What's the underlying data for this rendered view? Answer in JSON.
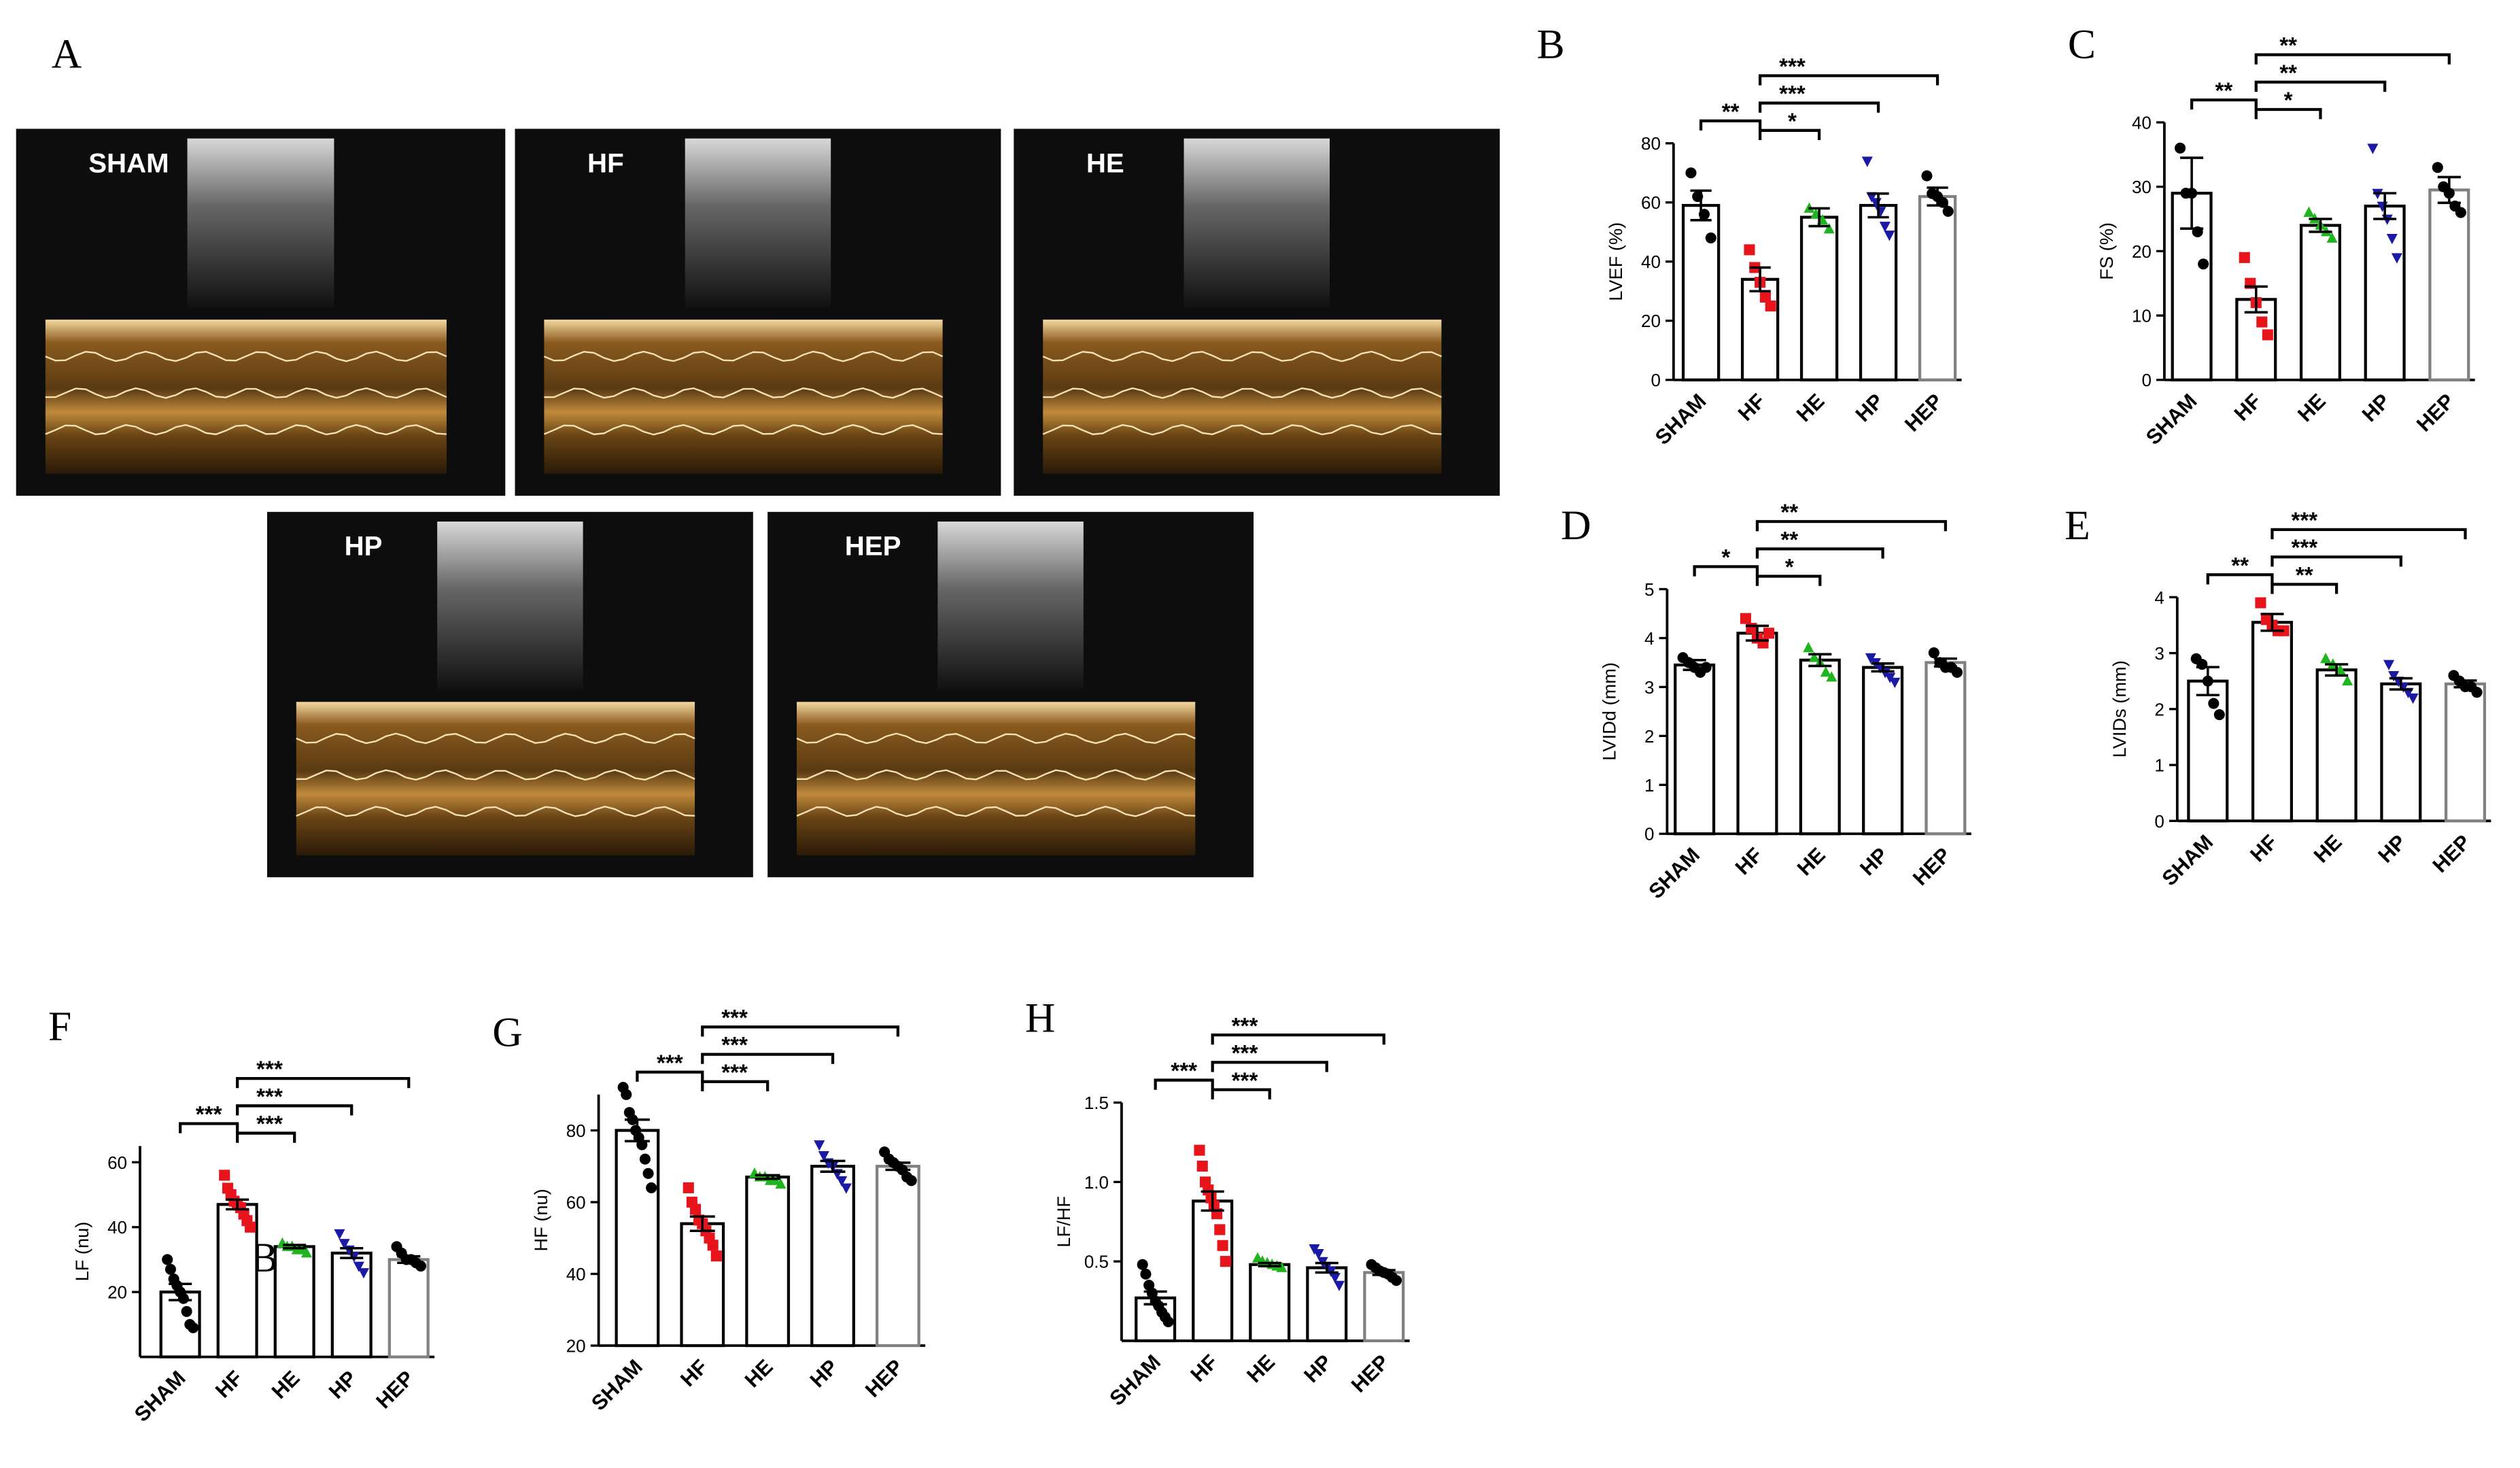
{
  "panel_a": {
    "label": "A",
    "images": [
      "SHAM",
      "HF",
      "HE",
      "HP",
      "HEP"
    ]
  },
  "chart_data": [
    {
      "type": "bar",
      "panel": "B",
      "ylabel": "LVEF (%)",
      "categories": [
        "SHAM",
        "HF",
        "HE",
        "HP",
        "HEP"
      ],
      "values": [
        59,
        34,
        55,
        59,
        62
      ],
      "errors": [
        5,
        4,
        3,
        4,
        3
      ],
      "points": [
        [
          70,
          62,
          56,
          48
        ],
        [
          44,
          38,
          33,
          28,
          25
        ],
        [
          58,
          56,
          54,
          51
        ],
        [
          74,
          62,
          60,
          57,
          52,
          49
        ],
        [
          69,
          63,
          62,
          60,
          57
        ]
      ],
      "colors": [
        "#000000",
        "#e8141c",
        "#1fb51f",
        "#1a1aa6",
        "#000000"
      ],
      "markers": [
        "circle",
        "square",
        "triangle",
        "triangle-down",
        "circle"
      ],
      "edge_colors": [
        "#000000",
        "#000000",
        "#000000",
        "#000000",
        "#808080"
      ],
      "ylim": [
        0,
        80
      ],
      "yticks": [
        0,
        20,
        40,
        60,
        80
      ],
      "brackets": [
        {
          "from": 0,
          "to": 1,
          "label": "**"
        },
        {
          "from": 1,
          "to": 2,
          "label": "*"
        },
        {
          "from": 1,
          "to": 3,
          "label": "***"
        },
        {
          "from": 1,
          "to": 4,
          "label": "***"
        }
      ]
    },
    {
      "type": "bar",
      "panel": "C",
      "ylabel": "FS (%)",
      "categories": [
        "SHAM",
        "HF",
        "HE",
        "HP",
        "HEP"
      ],
      "values": [
        29,
        12.5,
        24,
        27,
        29.5
      ],
      "errors": [
        5.5,
        2,
        1,
        2,
        2
      ],
      "points": [
        [
          36,
          29,
          29,
          23,
          18
        ],
        [
          19,
          15,
          12,
          9,
          7
        ],
        [
          26,
          25,
          24,
          23,
          22
        ],
        [
          36,
          29,
          27,
          25,
          22,
          19
        ],
        [
          33,
          30,
          29,
          27,
          26
        ]
      ],
      "colors": [
        "#000000",
        "#e8141c",
        "#1fb51f",
        "#1a1aa6",
        "#000000"
      ],
      "markers": [
        "circle",
        "square",
        "triangle",
        "triangle-down",
        "circle"
      ],
      "edge_colors": [
        "#000000",
        "#000000",
        "#000000",
        "#000000",
        "#808080"
      ],
      "ylim": [
        0,
        40
      ],
      "yticks": [
        0,
        10,
        20,
        30,
        40
      ],
      "brackets": [
        {
          "from": 0,
          "to": 1,
          "label": "**"
        },
        {
          "from": 1,
          "to": 2,
          "label": "*"
        },
        {
          "from": 1,
          "to": 3,
          "label": "**"
        },
        {
          "from": 1,
          "to": 4,
          "label": "**"
        }
      ]
    },
    {
      "type": "bar",
      "panel": "D",
      "ylabel": "LVIDd (mm)",
      "categories": [
        "SHAM",
        "HF",
        "HE",
        "HP",
        "HEP"
      ],
      "values": [
        3.45,
        4.1,
        3.55,
        3.4,
        3.5
      ],
      "errors": [
        0.1,
        0.15,
        0.12,
        0.08,
        0.08
      ],
      "points": [
        [
          3.6,
          3.5,
          3.4,
          3.3,
          3.4
        ],
        [
          4.4,
          4.2,
          4.0,
          3.9,
          4.1
        ],
        [
          3.8,
          3.6,
          3.5,
          3.3,
          3.2
        ],
        [
          3.6,
          3.5,
          3.4,
          3.3,
          3.2,
          3.1
        ],
        [
          3.7,
          3.5,
          3.4,
          3.4,
          3.3
        ]
      ],
      "colors": [
        "#000000",
        "#e8141c",
        "#1fb51f",
        "#1a1aa6",
        "#000000"
      ],
      "markers": [
        "circle",
        "square",
        "triangle",
        "triangle-down",
        "circle"
      ],
      "edge_colors": [
        "#000000",
        "#000000",
        "#000000",
        "#000000",
        "#808080"
      ],
      "ylim": [
        0,
        5
      ],
      "yticks": [
        0,
        1,
        2,
        3,
        4,
        5
      ],
      "brackets": [
        {
          "from": 0,
          "to": 1,
          "label": "*"
        },
        {
          "from": 1,
          "to": 2,
          "label": "*"
        },
        {
          "from": 1,
          "to": 3,
          "label": "**"
        },
        {
          "from": 1,
          "to": 4,
          "label": "**"
        }
      ]
    },
    {
      "type": "bar",
      "panel": "E",
      "ylabel": "LVIDs (mm)",
      "categories": [
        "SHAM",
        "HF",
        "HE",
        "HP",
        "HEP"
      ],
      "values": [
        2.5,
        3.55,
        2.7,
        2.45,
        2.45
      ],
      "errors": [
        0.25,
        0.15,
        0.1,
        0.1,
        0.06
      ],
      "points": [
        [
          2.9,
          2.8,
          2.5,
          2.1,
          1.9
        ],
        [
          3.9,
          3.6,
          3.5,
          3.4,
          3.4
        ],
        [
          2.9,
          2.8,
          2.7,
          2.5
        ],
        [
          2.8,
          2.6,
          2.5,
          2.4,
          2.3,
          2.2
        ],
        [
          2.6,
          2.5,
          2.4,
          2.4,
          2.3
        ]
      ],
      "colors": [
        "#000000",
        "#e8141c",
        "#1fb51f",
        "#1a1aa6",
        "#000000"
      ],
      "markers": [
        "circle",
        "square",
        "triangle",
        "triangle-down",
        "circle"
      ],
      "edge_colors": [
        "#000000",
        "#000000",
        "#000000",
        "#000000",
        "#808080"
      ],
      "ylim": [
        0,
        4
      ],
      "yticks": [
        0,
        1,
        2,
        3,
        4
      ],
      "brackets": [
        {
          "from": 0,
          "to": 1,
          "label": "**"
        },
        {
          "from": 1,
          "to": 2,
          "label": "**"
        },
        {
          "from": 1,
          "to": 3,
          "label": "***"
        },
        {
          "from": 1,
          "to": 4,
          "label": "***"
        }
      ]
    },
    {
      "type": "bar",
      "panel": "F",
      "ylabel": "LF (nu)",
      "annotation": "B",
      "categories": [
        "SHAM",
        "HF",
        "HE",
        "HP",
        "HEP"
      ],
      "values": [
        20,
        47,
        34,
        32,
        30
      ],
      "errors": [
        2.5,
        1.5,
        0.5,
        1.5,
        1
      ],
      "points": [
        [
          30,
          27,
          24,
          22,
          20,
          18,
          14,
          10,
          9
        ],
        [
          56,
          52,
          50,
          48,
          47,
          46,
          44,
          42,
          40
        ],
        [
          35,
          34,
          34,
          33,
          33,
          32
        ],
        [
          38,
          35,
          33,
          31,
          28,
          26
        ],
        [
          34,
          32,
          30,
          30,
          29,
          28
        ]
      ],
      "colors": [
        "#000000",
        "#e8141c",
        "#1fb51f",
        "#1a1aa6",
        "#000000"
      ],
      "markers": [
        "circle",
        "square",
        "triangle",
        "triangle-down",
        "circle"
      ],
      "edge_colors": [
        "#000000",
        "#000000",
        "#000000",
        "#000000",
        "#808080"
      ],
      "ylim": [
        0,
        65
      ],
      "yticks": [
        20,
        40,
        60
      ],
      "brackets": [
        {
          "from": 0,
          "to": 1,
          "label": "***"
        },
        {
          "from": 1,
          "to": 2,
          "label": "***"
        },
        {
          "from": 1,
          "to": 3,
          "label": "***"
        },
        {
          "from": 1,
          "to": 4,
          "label": "***"
        }
      ]
    },
    {
      "type": "bar",
      "panel": "G",
      "ylabel": "HF (nu)",
      "categories": [
        "SHAM",
        "HF",
        "HE",
        "HP",
        "HEP"
      ],
      "values": [
        80,
        54,
        67,
        70,
        70
      ],
      "errors": [
        3,
        2,
        0.5,
        1.5,
        1
      ],
      "points": [
        [
          92,
          90,
          85,
          83,
          80,
          78,
          76,
          72,
          68,
          64
        ],
        [
          64,
          60,
          58,
          55,
          54,
          52,
          50,
          48,
          45
        ],
        [
          68,
          67,
          67,
          66,
          66,
          65
        ],
        [
          76,
          73,
          71,
          70,
          68,
          66,
          64
        ],
        [
          74,
          72,
          71,
          70,
          69,
          67,
          66
        ]
      ],
      "colors": [
        "#000000",
        "#e8141c",
        "#1fb51f",
        "#1a1aa6",
        "#000000"
      ],
      "markers": [
        "circle",
        "square",
        "triangle",
        "triangle-down",
        "circle"
      ],
      "edge_colors": [
        "#000000",
        "#000000",
        "#000000",
        "#000000",
        "#808080"
      ],
      "ylim": [
        20,
        90
      ],
      "yticks": [
        20,
        40,
        60,
        80
      ],
      "brackets": [
        {
          "from": 0,
          "to": 1,
          "label": "***"
        },
        {
          "from": 1,
          "to": 2,
          "label": "***"
        },
        {
          "from": 1,
          "to": 3,
          "label": "***"
        },
        {
          "from": 1,
          "to": 4,
          "label": "***"
        }
      ]
    },
    {
      "type": "bar",
      "panel": "H",
      "ylabel": "LF/HF",
      "categories": [
        "SHAM",
        "HF",
        "HE",
        "HP",
        "HEP"
      ],
      "values": [
        0.27,
        0.88,
        0.48,
        0.46,
        0.43
      ],
      "errors": [
        0.04,
        0.06,
        0.01,
        0.03,
        0.015
      ],
      "points": [
        [
          0.48,
          0.42,
          0.35,
          0.3,
          0.25,
          0.22,
          0.18,
          0.15,
          0.12
        ],
        [
          1.2,
          1.1,
          1.0,
          0.95,
          0.9,
          0.85,
          0.8,
          0.7,
          0.6,
          0.5
        ],
        [
          0.52,
          0.5,
          0.49,
          0.48,
          0.47,
          0.46
        ],
        [
          0.58,
          0.55,
          0.5,
          0.47,
          0.44,
          0.4,
          0.35
        ],
        [
          0.48,
          0.46,
          0.44,
          0.43,
          0.42,
          0.4,
          0.38
        ]
      ],
      "colors": [
        "#000000",
        "#e8141c",
        "#1fb51f",
        "#1a1aa6",
        "#000000"
      ],
      "markers": [
        "circle",
        "square",
        "triangle",
        "triangle-down",
        "circle"
      ],
      "edge_colors": [
        "#000000",
        "#000000",
        "#000000",
        "#000000",
        "#808080"
      ],
      "ylim": [
        0,
        1.5
      ],
      "yticks": [
        0.5,
        {
          "value": 1,
          "label": "1.0"
        },
        1.5
      ],
      "brackets": [
        {
          "from": 0,
          "to": 1,
          "label": "***"
        },
        {
          "from": 1,
          "to": 2,
          "label": "***"
        },
        {
          "from": 1,
          "to": 3,
          "label": "***"
        },
        {
          "from": 1,
          "to": 4,
          "label": "***"
        }
      ]
    }
  ]
}
